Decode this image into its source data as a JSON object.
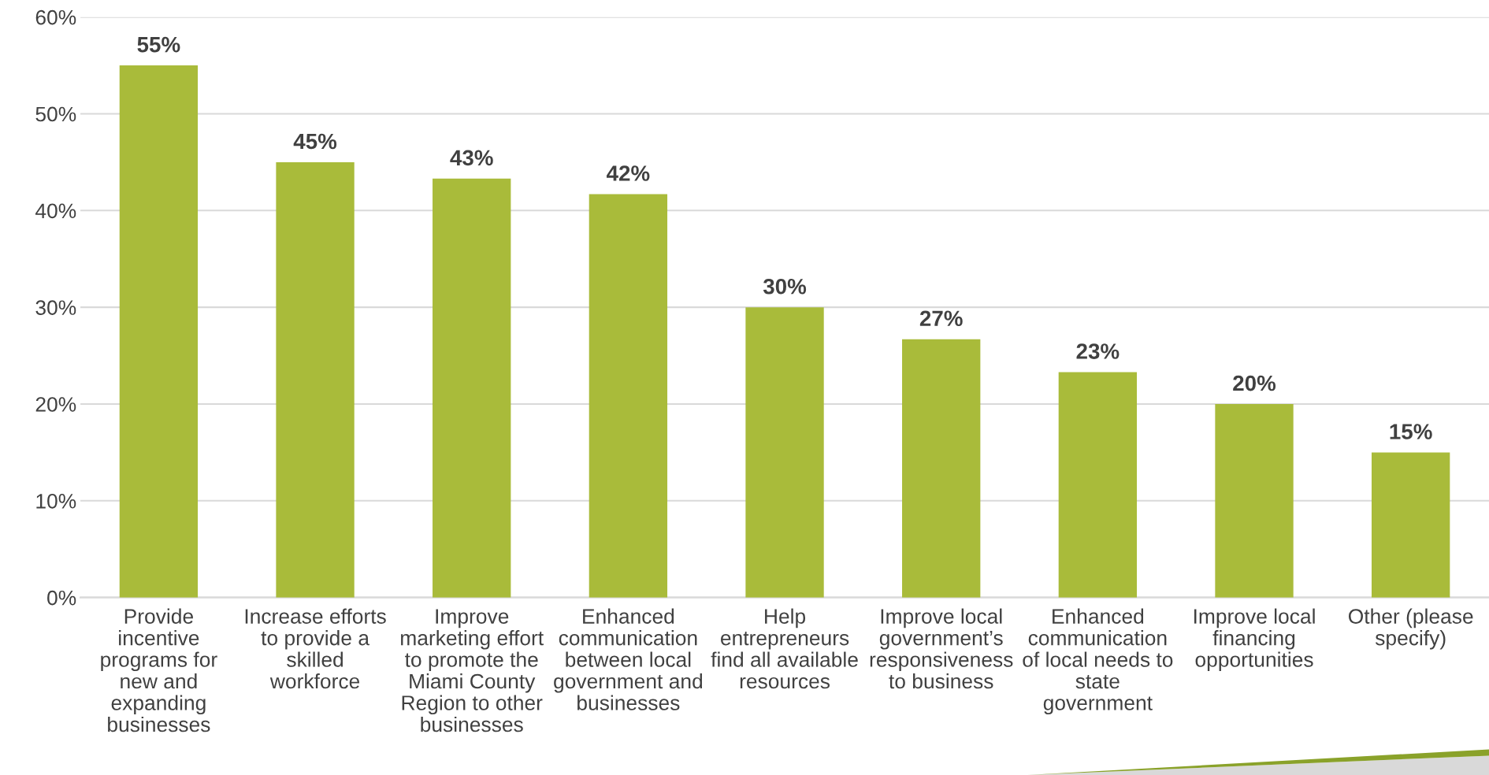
{
  "chart_data": {
    "type": "bar",
    "categories": [
      "Provide\nincentive\nprograms for\nnew and\nexpanding\nbusinesses",
      "Increase efforts\nto provide a\nskilled\nworkforce",
      "Improve\nmarketing effort\nto promote the\nMiami County\nRegion to other\nbusinesses",
      "Enhanced\ncommunication\nbetween local\ngovernment and\nbusinesses",
      "Help\nentrepreneurs\nfind all available\nresources",
      "Improve local\ngovernment’s\nresponsiveness\nto business",
      "Enhanced\ncommunication\nof local needs to\nstate\ngovernment",
      "Improve local\nfinancing\nopportunities",
      "Other (please\nspecify)"
    ],
    "values": [
      55,
      45,
      43.3,
      41.7,
      30,
      26.7,
      23.3,
      20,
      15
    ],
    "value_labels": [
      "55%",
      "45%",
      "43%",
      "42%",
      "30%",
      "27%",
      "23%",
      "20%",
      "15%"
    ],
    "color": "#a9bb3a",
    "ylim": [
      0,
      60
    ],
    "yticks": [
      {
        "value": 0,
        "label": "0%"
      },
      {
        "value": 10,
        "label": "10%"
      },
      {
        "value": 20,
        "label": "20%"
      },
      {
        "value": 30,
        "label": "30%"
      },
      {
        "value": 40,
        "label": "40%"
      },
      {
        "value": 50,
        "label": "50%"
      },
      {
        "value": 60,
        "label": "60%"
      }
    ],
    "grid": "y",
    "legend": false
  }
}
